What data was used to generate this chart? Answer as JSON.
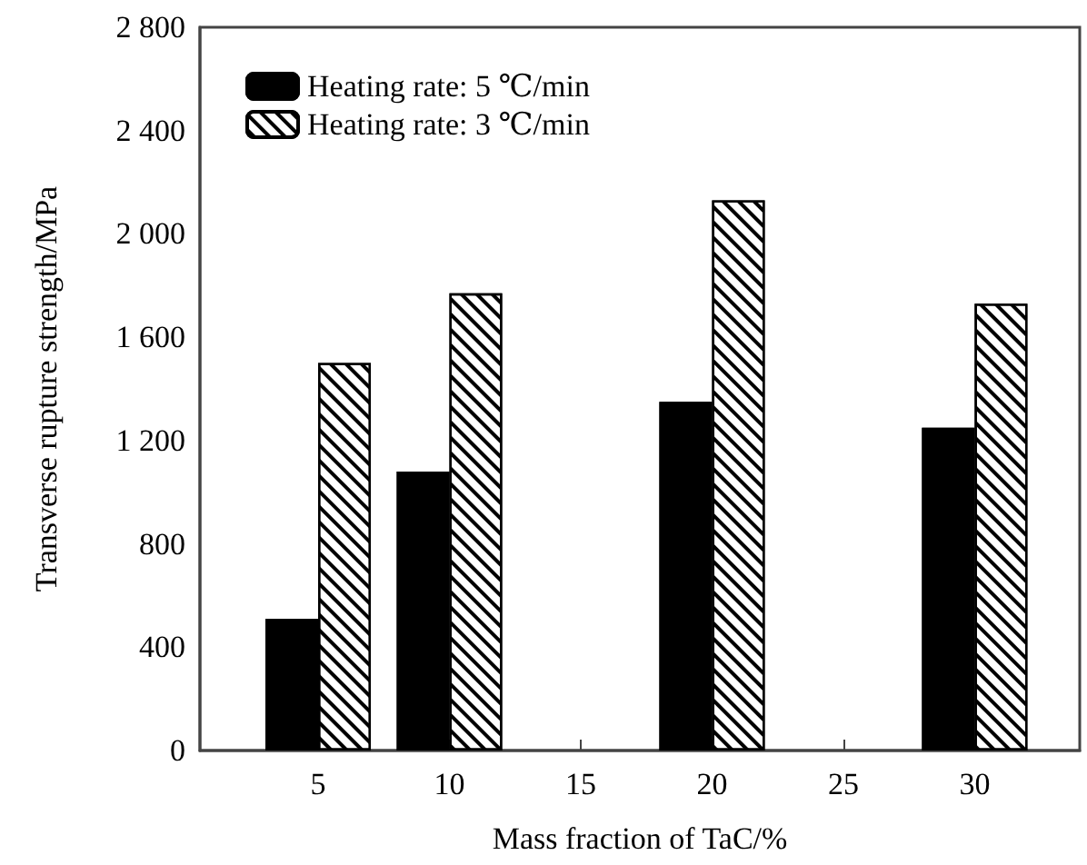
{
  "chart_data": {
    "type": "bar",
    "xlabel": "Mass fraction of TaC/%",
    "ylabel": "Transverse rupture strength/MPa",
    "x": [
      5,
      10,
      20,
      30
    ],
    "series": [
      {
        "name": "Heating rate: 5 ℃/min",
        "color": "#000000",
        "values": [
          510,
          1080,
          1350,
          1250
        ]
      },
      {
        "name": "Heating rate: 3 ℃/min",
        "color": "#ffffff",
        "values": [
          1500,
          1770,
          2130,
          1730
        ]
      }
    ],
    "xlim": [
      0.5,
      34
    ],
    "xticks": [
      5,
      10,
      15,
      20,
      25,
      30
    ],
    "ylim": [
      0,
      2800
    ],
    "yticks": [
      0,
      400,
      800,
      {
        "value": 1200,
        "label": "1 200"
      },
      {
        "value": 1600,
        "label": "1 600"
      },
      {
        "value": 2000,
        "label": "2 000"
      },
      {
        "value": 2400,
        "label": "2 400"
      },
      {
        "value": 2800,
        "label": "2 800"
      }
    ],
    "legend": "top left",
    "grid": false
  }
}
